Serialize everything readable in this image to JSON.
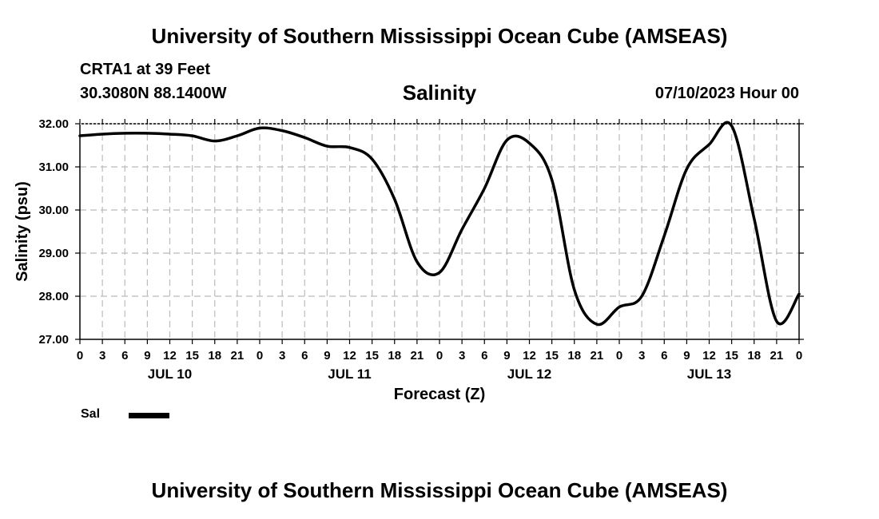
{
  "header": {
    "title": "University of Southern Mississippi Ocean Cube (AMSEAS)",
    "station": "CRTA1 at 39 Feet",
    "location": "30.3080N  88.1400W",
    "datetime": "07/10/2023 Hour 00"
  },
  "footer": {
    "title": "University of Southern Mississippi Ocean Cube (AMSEAS)"
  },
  "legend": {
    "label": "Sal"
  },
  "colors": {
    "line": "#000000",
    "grid": "#bbbbbb",
    "background": "#ffffff"
  },
  "chart_data": {
    "type": "line",
    "title": "Salinity",
    "xlabel": "Forecast (Z)",
    "ylabel": "Salinity (psu)",
    "ylim": [
      27.0,
      32.0
    ],
    "xlim": [
      0,
      96
    ],
    "yticks": [
      "27.00",
      "28.00",
      "29.00",
      "30.00",
      "31.00",
      "32.00"
    ],
    "y_tick_values": [
      27,
      28,
      29,
      30,
      31,
      32
    ],
    "xtick_labels": [
      "0",
      "3",
      "6",
      "9",
      "12",
      "15",
      "18",
      "21",
      "0",
      "3",
      "6",
      "9",
      "12",
      "15",
      "18",
      "21",
      "0",
      "3",
      "6",
      "9",
      "12",
      "15",
      "18",
      "21",
      "0",
      "3",
      "6",
      "9",
      "12",
      "15",
      "18",
      "21",
      "0"
    ],
    "day_labels": [
      {
        "label": "JUL 10",
        "hour": 12
      },
      {
        "label": "JUL 11",
        "hour": 36
      },
      {
        "label": "JUL 12",
        "hour": 60
      },
      {
        "label": "JUL 13",
        "hour": 84
      }
    ],
    "grid": true,
    "series": [
      {
        "name": "Sal",
        "x": [
          0,
          3,
          6,
          9,
          12,
          15,
          18,
          21,
          24,
          27,
          30,
          33,
          36,
          39,
          42,
          45,
          48,
          51,
          54,
          57,
          60,
          63,
          66,
          69,
          72,
          75,
          78,
          81,
          84,
          87,
          90,
          93,
          96
        ],
        "values": [
          31.72,
          31.76,
          31.78,
          31.78,
          31.76,
          31.72,
          31.6,
          31.72,
          31.9,
          31.84,
          31.68,
          31.48,
          31.45,
          31.18,
          30.25,
          28.8,
          28.55,
          29.55,
          30.5,
          31.62,
          31.55,
          30.7,
          28.15,
          27.35,
          27.75,
          28.0,
          29.4,
          30.95,
          31.52,
          31.95,
          29.8,
          27.42,
          28.05
        ]
      }
    ]
  }
}
